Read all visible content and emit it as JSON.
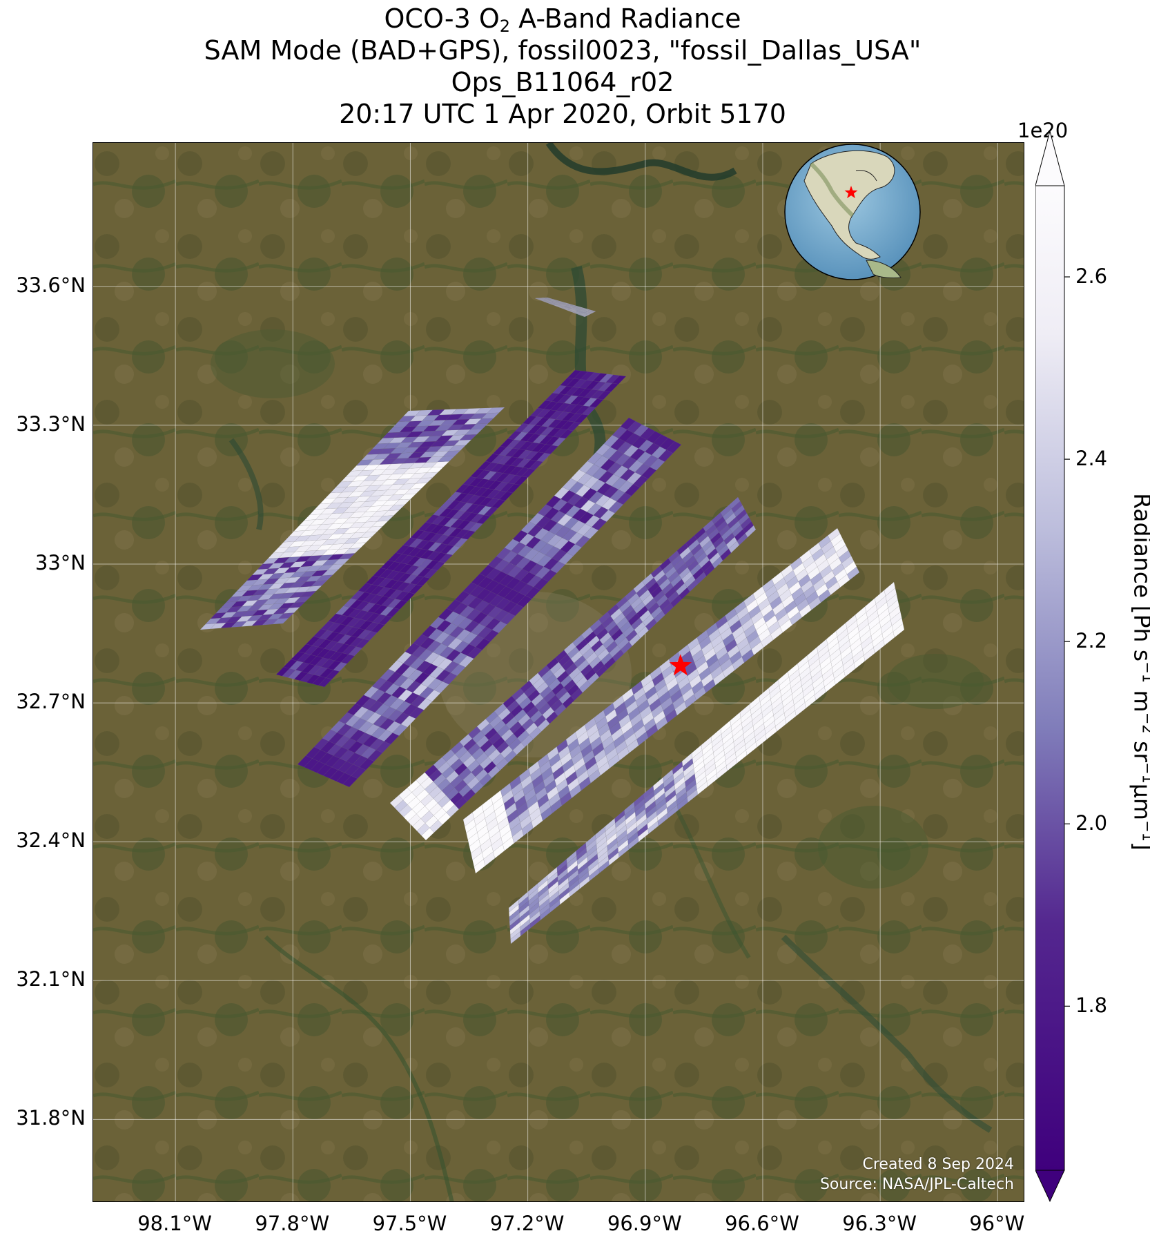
{
  "title": {
    "line1_pre": "OCO-3 O",
    "line1_sub": "2",
    "line1_post": " A-Band Radiance",
    "line2": "SAM Mode (BAD+GPS), fossil0023, \"fossil_Dallas_USA\"",
    "line3": "Ops_B11064_r02",
    "line4": "20:17 UTC 1 Apr 2020, Orbit 5170"
  },
  "axes": {
    "lat_ticks": [
      "33.6°N",
      "33.3°N",
      "33°N",
      "32.7°N",
      "32.4°N",
      "32.1°N",
      "31.8°N"
    ],
    "lat_values": [
      33.6,
      33.3,
      33.0,
      32.7,
      32.4,
      32.1,
      31.8
    ],
    "lon_ticks": [
      "98.1°W",
      "97.8°W",
      "97.5°W",
      "97.2°W",
      "96.9°W",
      "96.6°W",
      "96.3°W",
      "96°W"
    ],
    "lon_values": [
      -98.1,
      -97.8,
      -97.5,
      -97.2,
      -96.9,
      -96.6,
      -96.3,
      -96.0
    ],
    "lon_range": [
      -98.31,
      -95.93
    ],
    "lat_range": [
      31.62,
      33.91
    ],
    "grid": true
  },
  "target": {
    "name": "fossil_Dallas_USA",
    "marker": "red-star",
    "lon": -96.81,
    "lat": 32.78
  },
  "inset_globe": {
    "description_icon": "globe-icon",
    "marker": "red-star"
  },
  "colorbar": {
    "exponent": "1e20",
    "ticks": [
      "1.8",
      "2.0",
      "2.2",
      "2.4",
      "2.6"
    ],
    "tick_values": [
      1.8,
      2.0,
      2.2,
      2.4,
      2.6
    ],
    "range": [
      1.62,
      2.7
    ],
    "extend": "both",
    "colormap": "Purples_r",
    "label": "Radiance [Ph s⁻¹ m⁻² sr⁻¹μm⁻¹]",
    "label_parts": [
      "Radiance [Ph s",
      "−1",
      " m",
      "−2",
      " sr",
      "−1",
      "μm",
      "−1",
      "]"
    ]
  },
  "credits": {
    "created": "Created 8 Sep 2024",
    "source": "Source: NASA/JPL-Caltech"
  },
  "colors": {
    "colormap_low": "#3f007d",
    "colormap_mid": "#807dba",
    "colormap_high": "#fcfbfd",
    "target_star": "#ff0000",
    "land": "#6b6238",
    "vegetation": "#3f5a2c",
    "water": "#2e4a33"
  }
}
